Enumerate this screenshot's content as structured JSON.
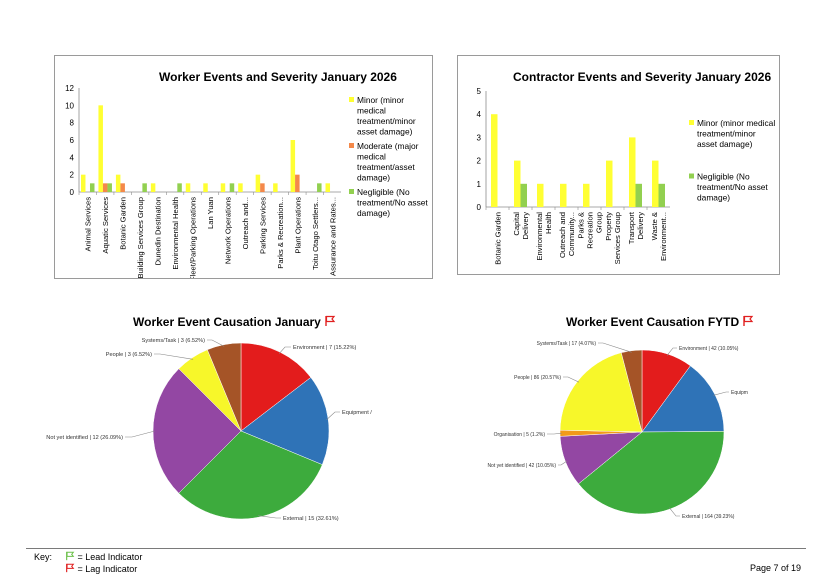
{
  "worker_bar_chart": {
    "chart_data": {
      "type": "bar",
      "title": "Worker Events and Severity January 2026",
      "categories": [
        "Animal Services",
        "Aquatic Services",
        "Botanic Garden",
        "Building Services Group",
        "Dunedin Destination",
        "Environmental Health",
        "Fleet/Parking Operations",
        "Lan Yuan",
        "Network Operations",
        "Outreach and...",
        "Parking Services",
        "Parks & Recreation...",
        "Plant Operations",
        "Toitu Otago Settlers...",
        "Assurance and Rates..."
      ],
      "ylim": [
        0,
        12
      ],
      "yticks": [
        0,
        2,
        4,
        6,
        8,
        10,
        12
      ],
      "series": [
        {
          "name": "Minor (minor medical treatment/minor asset damage)",
          "color": "#ffff33",
          "values": [
            2,
            10,
            2,
            0,
            1,
            0,
            1,
            1,
            1,
            1,
            2,
            1,
            6,
            0,
            1
          ]
        },
        {
          "name": "Moderate (major medical treatment/asset damage)",
          "color": "#f4894a",
          "values": [
            0,
            1,
            1,
            0,
            0,
            0,
            0,
            0,
            0,
            0,
            1,
            0,
            2,
            0,
            0
          ]
        },
        {
          "name": "Negligible (No treatment/No asset damage)",
          "color": "#92d050",
          "values": [
            1,
            1,
            0,
            1,
            0,
            1,
            0,
            0,
            1,
            0,
            0,
            0,
            0,
            1,
            0
          ]
        }
      ],
      "legend": "right"
    }
  },
  "contractor_bar_chart": {
    "chart_data": {
      "type": "bar",
      "title": "Contractor Events and Severity January 2026",
      "categories": [
        "Botanic Garden",
        "Capital Delivery",
        "Environmental Health",
        "Outreach and Community...",
        "Parks & Recreation Group",
        "Property Services Group",
        "Transport Delivery",
        "Waste & Environment..."
      ],
      "ylim": [
        0,
        5
      ],
      "yticks": [
        0,
        1,
        2,
        3,
        4,
        5
      ],
      "series": [
        {
          "name": "Minor (minor medical treatment/minor asset damage)",
          "color": "#ffff33",
          "values": [
            4,
            2,
            1,
            1,
            1,
            2,
            3,
            2
          ]
        },
        {
          "name": "Negligible (No treatment/No asset damage)",
          "color": "#92d050",
          "values": [
            0,
            1,
            0,
            0,
            0,
            0,
            1,
            1
          ]
        }
      ],
      "legend": "right"
    }
  },
  "worker_pie_january": {
    "title": "Worker Event Causation January",
    "chart_data": {
      "type": "pie",
      "slices": [
        {
          "label": "Environment | 7 (15.22%)",
          "value": 15.22,
          "color": "#e31c1c"
        },
        {
          "label": "Equipment /",
          "value": 17.39,
          "color": "#2f73b7"
        },
        {
          "label": "External | 15 (32.61%)",
          "value": 32.61,
          "color": "#3dab3d"
        },
        {
          "label": "Not yet identified | 12 (26.09%)",
          "value": 26.09,
          "color": "#9347a3"
        },
        {
          "label": "People | 3 (6.52%)",
          "value": 6.52,
          "color": "#f7f72a"
        },
        {
          "label": "Systems/Task | 3 (6.52%)",
          "value": 6.52,
          "color": "#a55427"
        }
      ]
    }
  },
  "worker_pie_fytd": {
    "title": "Worker Event Causation FYTD",
    "chart_data": {
      "type": "pie",
      "slices": [
        {
          "label": "Environment | 42 (10.05%)",
          "value": 10.05,
          "color": "#e31c1c"
        },
        {
          "label": "Equipm",
          "value": 14.82,
          "color": "#2f73b7"
        },
        {
          "label": "External | 164 (39.23%)",
          "value": 39.23,
          "color": "#3dab3d"
        },
        {
          "label": "Not yet identified | 42 (10.05%)",
          "value": 10.05,
          "color": "#9347a3"
        },
        {
          "label": "Organisation | 5 (1.2%)",
          "value": 1.2,
          "color": "#f29a18"
        },
        {
          "label": "People | 86 (20.57%)",
          "value": 20.57,
          "color": "#f7f72a"
        },
        {
          "label": "Systems/Task | 17 (4.07%)",
          "value": 4.07,
          "color": "#a55427"
        }
      ]
    }
  },
  "footer": {
    "key_label": "Key:",
    "lead": "= Lead Indicator",
    "lag": "= Lag Indicator",
    "page": "Page 7 of 19"
  }
}
